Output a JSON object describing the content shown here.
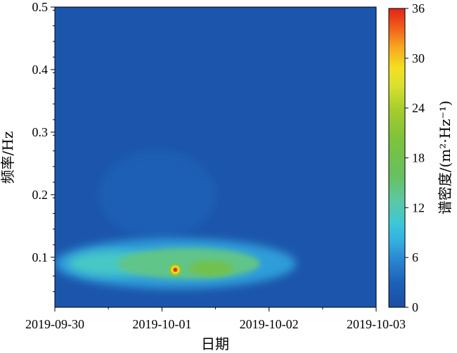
{
  "chart_data": {
    "type": "heatmap",
    "title": "",
    "xlabel": "日期",
    "ylabel": "频率/Hz",
    "colorbar_label": "谱密度/(m²·Hz⁻¹)",
    "x_ticks": [
      "2019-09-30",
      "2019-10-01",
      "2019-10-02",
      "2019-10-03"
    ],
    "y_ticks": [
      "0.1",
      "0.2",
      "0.3",
      "0.4",
      "0.5"
    ],
    "ylim": [
      0.02,
      0.5
    ],
    "xlim": [
      "2019-09-30",
      "2019-10-03"
    ],
    "colorbar_ticks": [
      "0",
      "6",
      "12",
      "18",
      "24",
      "30",
      "36"
    ],
    "zlim": [
      0,
      36
    ],
    "background_value": 1.2,
    "energy_regions": [
      {
        "t_start": "2019-09-30 00:00",
        "t_end": "2019-10-02 06:00",
        "f_low": 0.05,
        "f_high": 0.13,
        "value": 7,
        "label": "main band (light blue)"
      },
      {
        "t_start": "2019-09-30 03:00",
        "t_end": "2019-10-01 00:00",
        "f_low": 0.07,
        "f_high": 0.11,
        "value": 11
      },
      {
        "t_start": "2019-09-30 14:00",
        "t_end": "2019-10-01 22:00",
        "f_low": 0.065,
        "f_high": 0.115,
        "value": 14,
        "label": "green core"
      },
      {
        "t_start": "2019-10-01 06:00",
        "t_end": "2019-10-01 16:00",
        "f_low": 0.07,
        "f_high": 0.095,
        "value": 18
      }
    ],
    "peak": {
      "t": "2019-10-01 03:00",
      "f": 0.08,
      "value": 36
    },
    "faint_region": {
      "t_start": "2019-09-30 10:00",
      "t_end": "2019-10-01 12:00",
      "f_low": 0.13,
      "f_high": 0.27,
      "value": 2.5
    }
  }
}
